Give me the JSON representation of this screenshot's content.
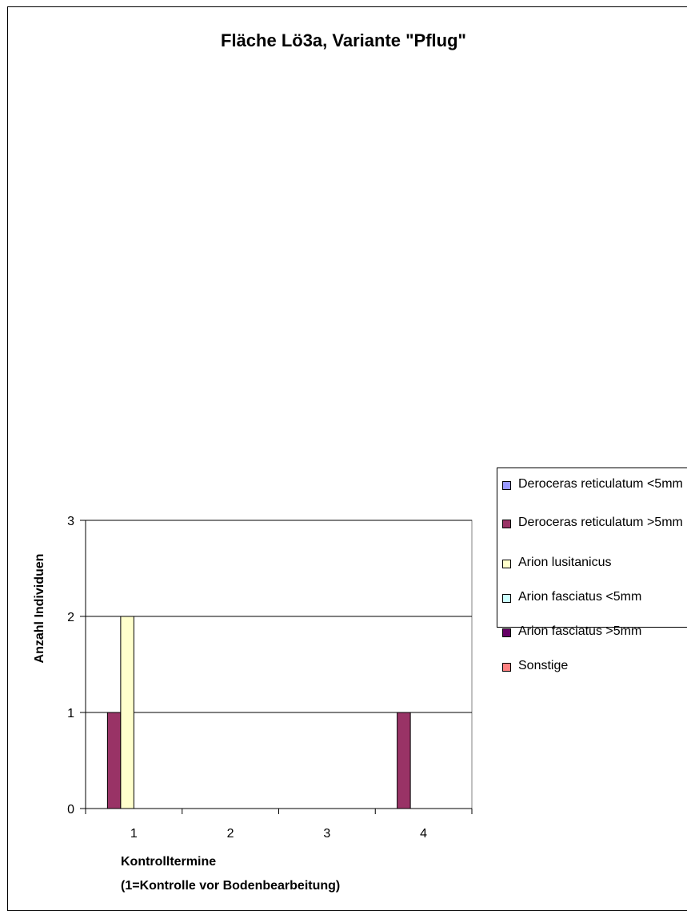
{
  "chart_data": {
    "type": "bar",
    "title": "Fläche Lö3a, Variante \"Pflug\"",
    "xlabel": [
      "Kontrolltermine",
      "(1=Kontrolle vor Bodenbearbeitung)"
    ],
    "ylabel": "Anzahl Individuen",
    "categories": [
      "1",
      "2",
      "3",
      "4"
    ],
    "ylim": [
      0,
      3
    ],
    "yticks": [
      "0",
      "1",
      "2",
      "3"
    ],
    "grid": true,
    "legend_position": "right",
    "series": [
      {
        "name": "Deroceras reticulatum <5mm",
        "color": "#9999ff",
        "values": [
          0,
          0,
          0,
          0
        ]
      },
      {
        "name": "Deroceras reticulatum >5mm",
        "color": "#993366",
        "values": [
          1,
          0,
          0,
          1
        ]
      },
      {
        "name": "Arion lusitanicus",
        "color": "#ffffcc",
        "values": [
          2,
          0,
          0,
          0
        ]
      },
      {
        "name": "Arion fasciatus <5mm",
        "color": "#ccffff",
        "values": [
          0,
          0,
          0,
          0
        ]
      },
      {
        "name": "Arion fasciatus >5mm",
        "color": "#660066",
        "values": [
          0,
          0,
          0,
          0
        ]
      },
      {
        "name": "Sonstige",
        "color": "#ff8080",
        "values": [
          0,
          0,
          0,
          0
        ]
      }
    ]
  }
}
